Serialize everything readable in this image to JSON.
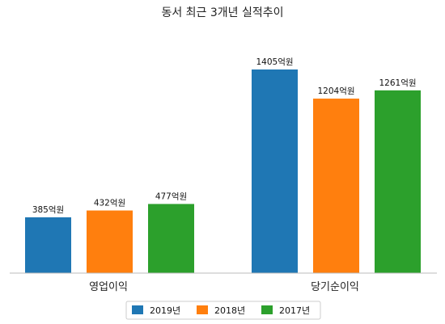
{
  "chart_data": {
    "type": "bar",
    "title": "동서 최근 3개년 실적추이",
    "categories": [
      "영업이익",
      "당기순이익"
    ],
    "series": [
      {
        "name": "2019년",
        "color": "#1f77b4",
        "values": [
          385,
          1405
        ],
        "labels": [
          "385억원",
          "1405억원"
        ]
      },
      {
        "name": "2018년",
        "color": "#ff7f0e",
        "values": [
          432,
          1204
        ],
        "labels": [
          "432억원",
          "1204억원"
        ]
      },
      {
        "name": "2017년",
        "color": "#2ca02c",
        "values": [
          477,
          1261
        ],
        "labels": [
          "477억원",
          "1261억원"
        ]
      }
    ],
    "ylim": [
      0,
      1405
    ],
    "grid": false,
    "legend_position": "bottom-center"
  }
}
